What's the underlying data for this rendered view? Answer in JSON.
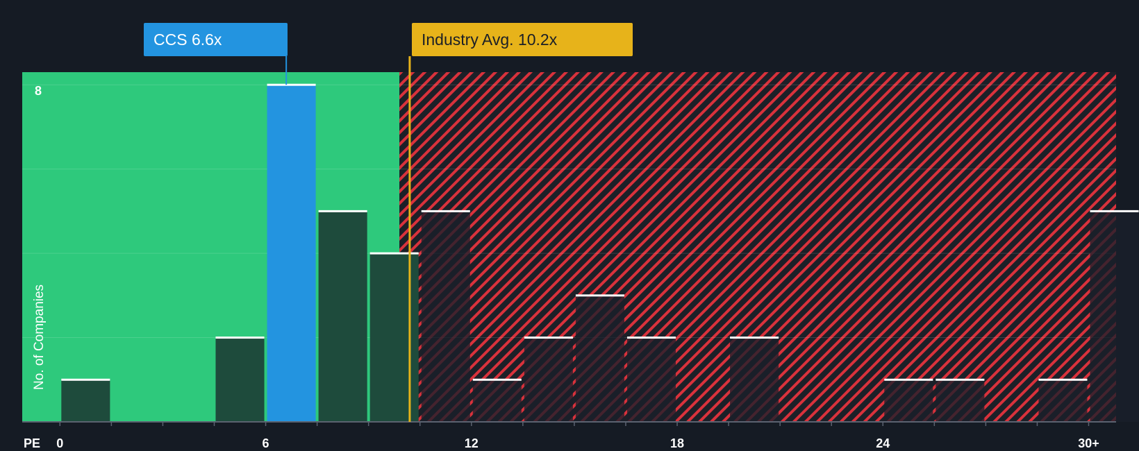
{
  "chart_data": {
    "type": "bar",
    "x_axis_label": "PE",
    "y_axis_label": "No. of Companies",
    "x_ticks": [
      "0",
      "6",
      "12",
      "18",
      "24",
      "30+"
    ],
    "x_tick_values": [
      0,
      6,
      12,
      18,
      24,
      30
    ],
    "y_ticks": [
      8
    ],
    "xlim": [
      -1.1,
      30.8
    ],
    "ylim": [
      0,
      8.3
    ],
    "bin_width": 1.5,
    "bars": [
      {
        "x": 0,
        "value": 1
      },
      {
        "x": 4.5,
        "value": 2
      },
      {
        "x": 6,
        "value": 8,
        "highlight": true
      },
      {
        "x": 7.5,
        "value": 5
      },
      {
        "x": 9,
        "value": 4
      },
      {
        "x": 10.5,
        "value": 5
      },
      {
        "x": 12,
        "value": 1
      },
      {
        "x": 13.5,
        "value": 2
      },
      {
        "x": 15,
        "value": 3
      },
      {
        "x": 16.5,
        "value": 2
      },
      {
        "x": 19.5,
        "value": 2
      },
      {
        "x": 24,
        "value": 1
      },
      {
        "x": 25.5,
        "value": 1
      },
      {
        "x": 28.5,
        "value": 1
      },
      {
        "x": 30,
        "value": 5
      }
    ],
    "company": {
      "label": "CCS 6.6x",
      "value": 6.6
    },
    "industry_avg": {
      "label": "Industry Avg. 10.2x",
      "value": 10.2
    },
    "fair_zone_upper": 9.9
  },
  "colors": {
    "background": "#151b24",
    "fair_zone": "#2ec97c",
    "overvalued_zone": "#1c2028",
    "hatch": "#d9323c",
    "bar": "#1e4b3c",
    "highlight_bar": "#2394e0",
    "bar_top": "#ffffff",
    "industry_line": "#e7b31a"
  }
}
